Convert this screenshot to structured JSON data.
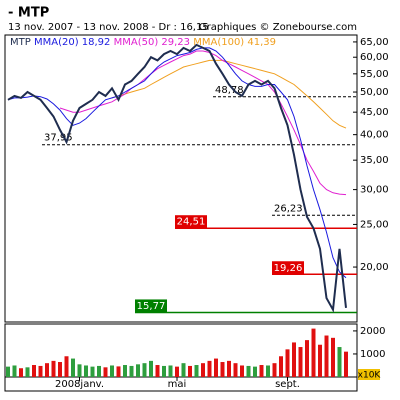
{
  "chart_data": {
    "type": "line",
    "title": "- MTP",
    "subtitle": "13 nov. 2007 - 13 nov. 2008 - Dr : 16,15",
    "source": "Graphiques © Zonebourse.com",
    "log_scale": true,
    "categories": [
      null,
      null,
      null,
      null,
      null,
      null,
      null,
      null,
      null,
      null,
      null,
      "2008janv.",
      null,
      null,
      null,
      null,
      null,
      null,
      null,
      null,
      null,
      null,
      null,
      null,
      null,
      null,
      "mai",
      null,
      null,
      null,
      null,
      null,
      null,
      null,
      null,
      null,
      null,
      null,
      null,
      null,
      null,
      null,
      null,
      "sept.",
      null,
      null,
      null,
      null,
      null,
      null,
      null,
      null,
      null
    ],
    "ylim": [
      15,
      67.4
    ],
    "yticks": [
      {
        "value": 20,
        "label": "20,00"
      },
      {
        "value": 25,
        "label": "25,00"
      },
      {
        "value": 30,
        "label": "30,00"
      },
      {
        "value": 35,
        "label": "35,00"
      },
      {
        "value": 40,
        "label": "40,00"
      },
      {
        "value": 45,
        "label": "45,00"
      },
      {
        "value": 50,
        "label": "50,00"
      },
      {
        "value": 55,
        "label": "55,00"
      },
      {
        "value": 60,
        "label": "60,00"
      },
      {
        "value": 65,
        "label": "65,00"
      }
    ],
    "series": [
      {
        "name": "MTP",
        "color": "#1f2d4f",
        "values": [
          48,
          49,
          48.5,
          50,
          49,
          48,
          46,
          44,
          41,
          38.5,
          43,
          46,
          47,
          48,
          50,
          49,
          51,
          48,
          52,
          53,
          55,
          57,
          60,
          59,
          61,
          62,
          61,
          63,
          62,
          64,
          63,
          62,
          58,
          55,
          52,
          50,
          49,
          52,
          53,
          52,
          53,
          51,
          46,
          42,
          36,
          30,
          26,
          24.5,
          22,
          17,
          16,
          22,
          16.15
        ]
      },
      {
        "name": "MMA(20) 18,92",
        "color": "#1a1adf",
        "values": [
          48,
          48.5,
          48.5,
          48.7,
          49,
          48.8,
          48.2,
          47,
          45.5,
          43.5,
          42,
          42.5,
          43.5,
          45,
          46.5,
          48,
          48.5,
          49,
          50,
          51,
          52,
          53,
          55,
          57,
          58.5,
          59.5,
          60.5,
          61,
          61.5,
          62.5,
          63,
          63,
          62,
          60,
          57.5,
          55,
          53,
          52,
          51.5,
          51.5,
          52,
          52,
          50,
          48,
          44,
          39,
          34,
          30,
          27,
          24,
          21,
          19.5,
          18.92
        ]
      },
      {
        "name": "MMA(50) 29,23",
        "color": "#e020d0",
        "values": [
          null,
          null,
          null,
          null,
          null,
          null,
          null,
          null,
          46,
          45.5,
          45,
          45,
          45.5,
          46,
          46.5,
          47,
          47.5,
          48.5,
          49.5,
          51,
          52,
          53.5,
          55,
          56.5,
          57.5,
          58.5,
          59.5,
          60.5,
          61,
          62,
          62,
          61.5,
          60.5,
          59,
          58,
          57,
          56,
          55,
          54,
          53,
          52,
          50,
          47,
          44,
          41,
          38,
          35,
          33,
          31,
          30,
          29.5,
          29.3,
          29.23
        ]
      },
      {
        "name": "MMA(100) 41,39",
        "color": "#f0a020",
        "values": [
          null,
          null,
          null,
          null,
          null,
          null,
          null,
          null,
          null,
          null,
          null,
          null,
          null,
          null,
          null,
          null,
          48.5,
          49,
          49.5,
          50,
          50.5,
          51,
          52,
          53,
          54,
          55,
          56,
          57,
          57.5,
          58,
          58.5,
          59,
          59,
          59,
          58.5,
          58,
          57.5,
          57,
          56.5,
          56,
          55.5,
          55,
          54,
          53,
          52,
          50.5,
          49,
          47.5,
          46,
          44.5,
          43,
          42,
          41.39
        ]
      }
    ],
    "levels": [
      {
        "value": 48.78,
        "label": "48,78",
        "style": "dashed",
        "color": "#000000"
      },
      {
        "value": 37.95,
        "label": "37,95",
        "style": "dashed",
        "color": "#000000"
      },
      {
        "value": 26.23,
        "label": "26,23",
        "style": "dashed",
        "color": "#000000"
      },
      {
        "value": 24.51,
        "label": "24,51",
        "style": "boxed",
        "color": "#e00000"
      },
      {
        "value": 19.26,
        "label": "19,26",
        "style": "boxed",
        "color": "#e00000"
      },
      {
        "value": 15.77,
        "label": "15,77",
        "style": "boxed",
        "color": "#008000"
      }
    ],
    "volume": {
      "unit": "x10K",
      "up_color": "#2e9e3e",
      "down_color": "#e01010",
      "ylim": [
        0,
        2300
      ],
      "yticks": [
        1000,
        2000
      ],
      "values": [
        450,
        500,
        380,
        420,
        520,
        480,
        600,
        700,
        650,
        900,
        800,
        550,
        500,
        450,
        480,
        420,
        500,
        460,
        520,
        480,
        550,
        600,
        700,
        520,
        480,
        500,
        450,
        600,
        480,
        520,
        600,
        700,
        800,
        650,
        700,
        600,
        500,
        480,
        450,
        520,
        500,
        600,
        900,
        1200,
        1500,
        1300,
        1600,
        2100,
        1400,
        1800,
        1700,
        1300,
        1100
      ]
    }
  }
}
